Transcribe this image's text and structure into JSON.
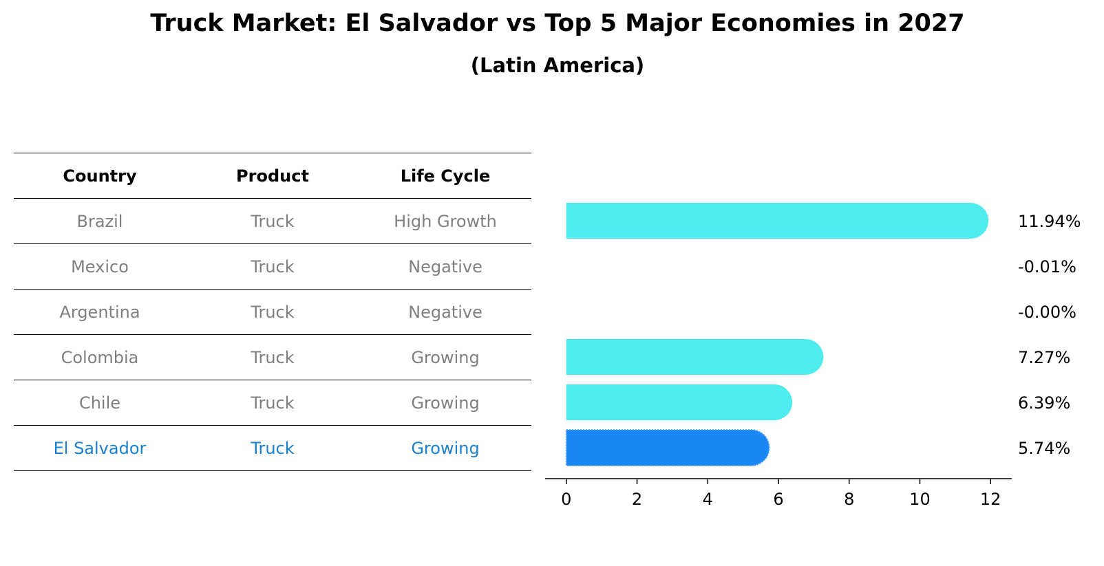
{
  "title": "Truck Market: El Salvador vs Top 5 Major Economies in 2027",
  "subtitle": "(Latin America)",
  "table": {
    "headers": [
      "Country",
      "Product",
      "Life Cycle"
    ],
    "rows": [
      {
        "country": "Brazil",
        "product": "Truck",
        "life_cycle": "High Growth"
      },
      {
        "country": "Mexico",
        "product": "Truck",
        "life_cycle": "Negative"
      },
      {
        "country": "Argentina",
        "product": "Truck",
        "life_cycle": "Negative"
      },
      {
        "country": "Colombia",
        "product": "Truck",
        "life_cycle": "Growing"
      },
      {
        "country": "Chile",
        "product": "Truck",
        "life_cycle": "Growing"
      },
      {
        "country": "El Salvador",
        "product": "Truck",
        "life_cycle": "Growing",
        "highlight": true
      }
    ]
  },
  "colors": {
    "bar": "#4eecec",
    "highlight_bar": "#1a87f4",
    "muted_text": "#808080",
    "highlight_text": "#1a80d0"
  },
  "chart_data": {
    "type": "bar",
    "orientation": "horizontal",
    "categories": [
      "Brazil",
      "Mexico",
      "Argentina",
      "Colombia",
      "Chile",
      "El Salvador"
    ],
    "values": [
      11.94,
      -0.01,
      -0.0,
      7.27,
      6.39,
      5.74
    ],
    "labels": [
      "11.94%",
      "-0.01%",
      "-0.00%",
      "7.27%",
      "6.39%",
      "5.74%"
    ],
    "highlight_index": 5,
    "xlim": [
      -0.6,
      12.6
    ],
    "xticks": [
      0,
      2,
      4,
      6,
      8,
      10,
      12
    ],
    "xtick_labels": [
      "0",
      "2",
      "4",
      "6",
      "8",
      "10",
      "12"
    ],
    "xlabel": "",
    "ylabel": "",
    "grid": false,
    "legend": "none"
  }
}
